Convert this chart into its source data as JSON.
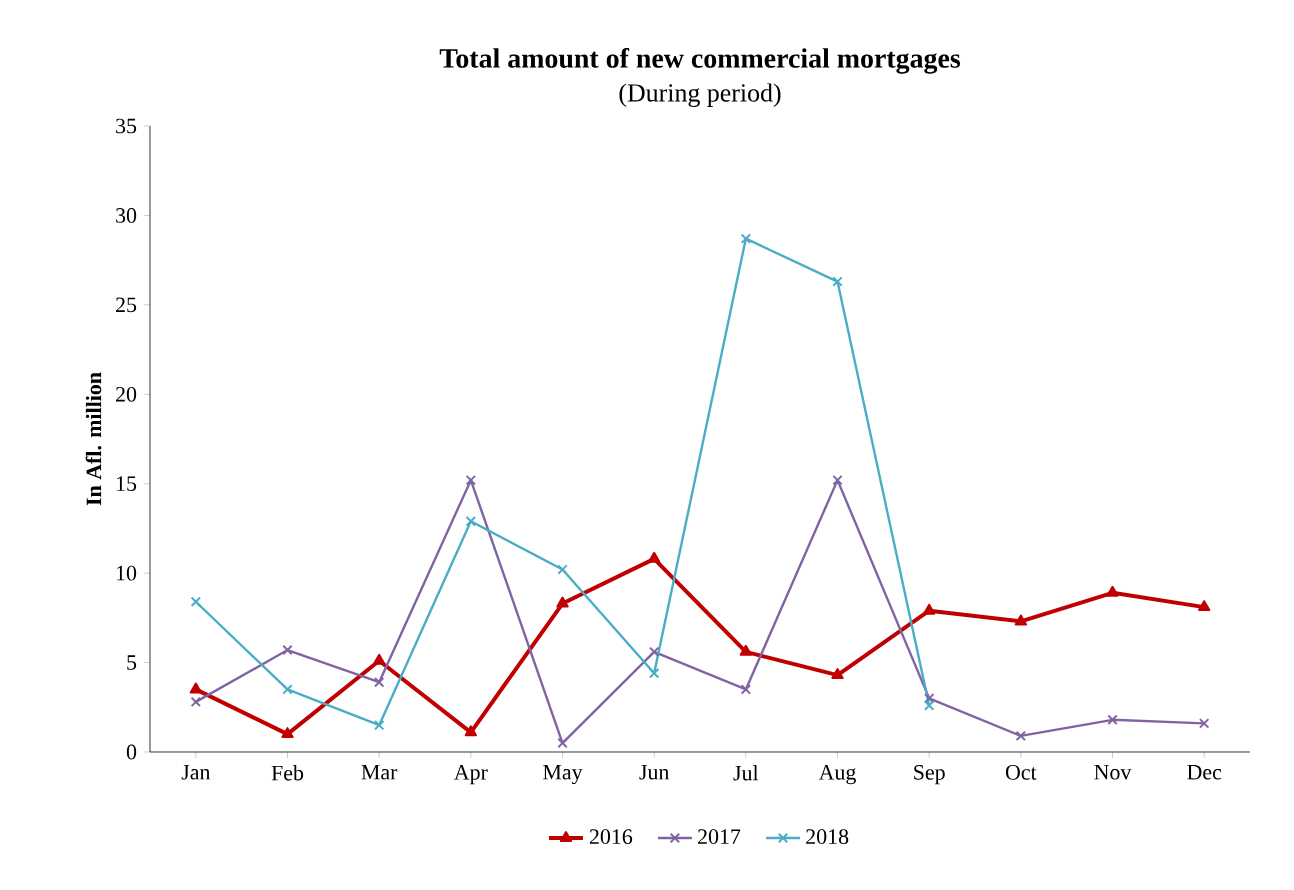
{
  "chart_data": {
    "type": "line",
    "title": "Total amount of new commercial mortgages",
    "subtitle": "(During period)",
    "ylabel": "In Afl. million",
    "categories": [
      "Jan",
      "Feb",
      "Mar",
      "Apr",
      "May",
      "Jun",
      "Jul",
      "Aug",
      "Sep",
      "Oct",
      "Nov",
      "Dec"
    ],
    "series": [
      {
        "name": "2016",
        "color": "#c00000",
        "marker": "triangle",
        "values": [
          3.5,
          1.0,
          5.1,
          1.1,
          8.3,
          10.8,
          5.6,
          4.3,
          7.9,
          7.3,
          8.9,
          8.1
        ]
      },
      {
        "name": "2017",
        "color": "#8064a2",
        "marker": "cross",
        "values": [
          2.8,
          5.7,
          3.9,
          15.2,
          0.5,
          5.6,
          3.5,
          15.2,
          3.0,
          0.9,
          1.8,
          1.6
        ]
      },
      {
        "name": "2018",
        "color": "#4bacc6",
        "marker": "cross",
        "values": [
          8.4,
          3.5,
          1.5,
          12.9,
          10.2,
          4.4,
          28.7,
          26.3,
          2.6,
          null,
          null,
          null
        ]
      }
    ],
    "ylim": [
      0,
      35
    ],
    "yticks": [
      0,
      5,
      10,
      15,
      20,
      25,
      30,
      35
    ],
    "legend": "bottom"
  }
}
